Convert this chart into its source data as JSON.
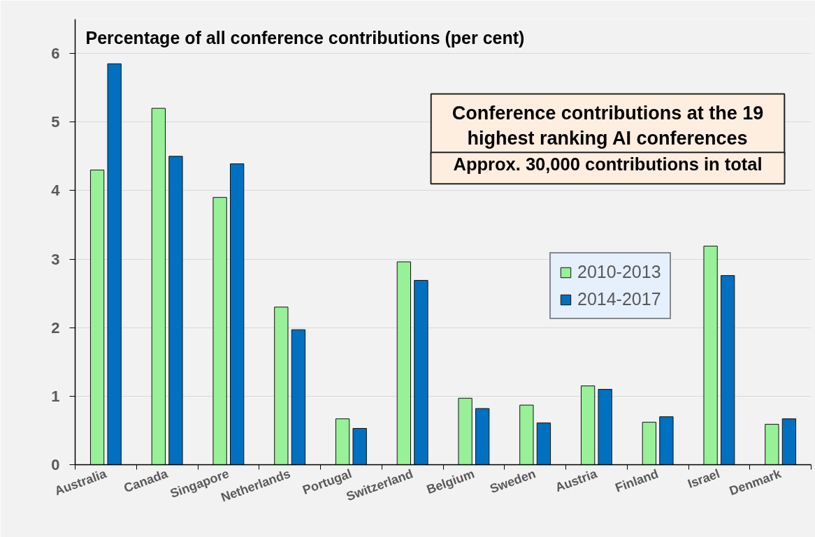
{
  "chart_data": {
    "type": "bar",
    "title": "Percentage of all conference contributions (per cent)",
    "annotations": [
      "Conference contributions at the 19 highest ranking AI conferences",
      "Approx. 30,000 contributions in total"
    ],
    "categories": [
      "Australia",
      "Canada",
      "Singapore",
      "Netherlands",
      "Portugal",
      "Switzerland",
      "Belgium",
      "Sweden",
      "Austria",
      "Finland",
      "Israel",
      "Denmark"
    ],
    "series": [
      {
        "name": "2010-2013",
        "color": "#98f098",
        "values": [
          4.3,
          5.2,
          3.9,
          2.3,
          0.67,
          2.96,
          0.97,
          0.87,
          1.15,
          0.62,
          3.19,
          0.59
        ]
      },
      {
        "name": "2014-2017",
        "color": "#0070c0",
        "values": [
          5.85,
          4.5,
          4.39,
          1.97,
          0.53,
          2.69,
          0.82,
          0.61,
          1.1,
          0.7,
          2.76,
          0.67
        ]
      }
    ],
    "ylim": [
      0,
      6.5
    ],
    "yticks": [
      0,
      1,
      2,
      3,
      4,
      5,
      6
    ],
    "grid": "y",
    "legend": "right"
  }
}
